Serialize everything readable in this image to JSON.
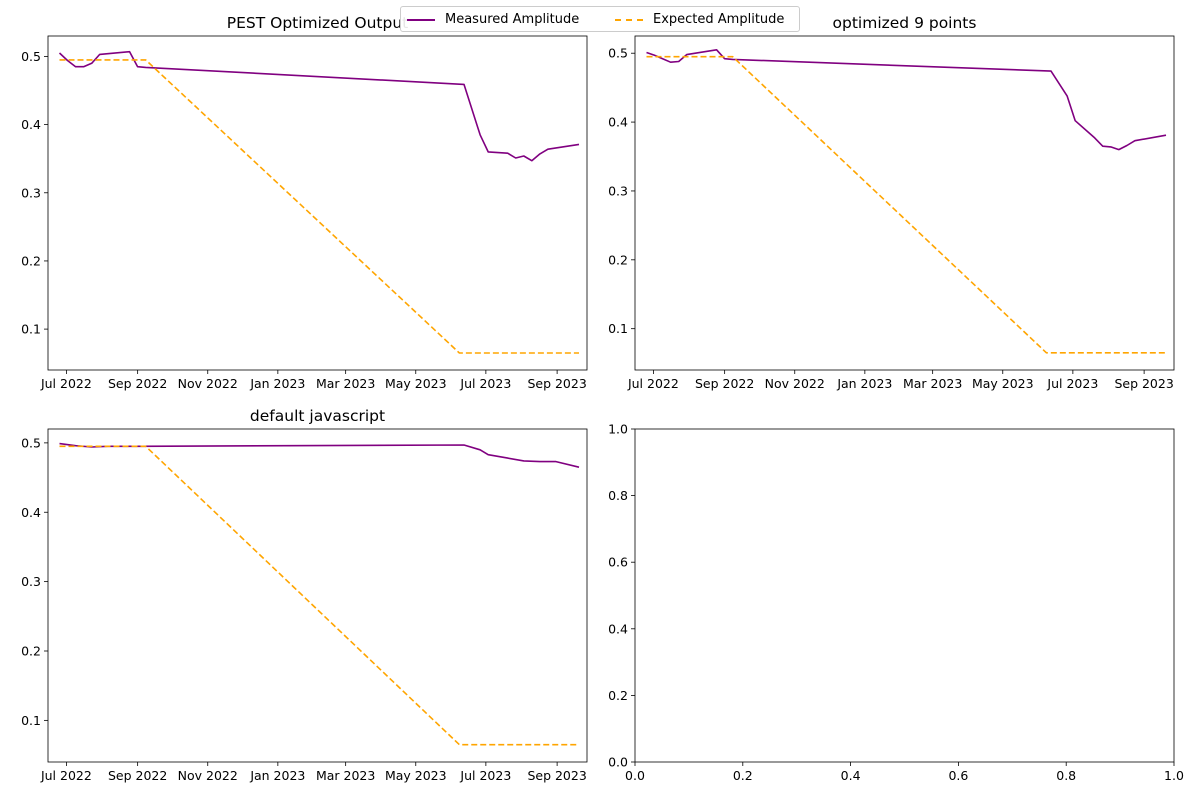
{
  "legend": {
    "placement": "top-center",
    "items": [
      {
        "label": "Measured Amplitude",
        "color": "#800080",
        "style": "solid"
      },
      {
        "label": "Expected Amplitude",
        "color": "#FFA500",
        "style": "dashed"
      }
    ]
  },
  "chart_data": [
    {
      "type": "line",
      "title": "PEST Optimized Output",
      "xlabel": "",
      "ylabel": "",
      "x_type": "date",
      "xlim": [
        "2022-06-15",
        "2023-09-27"
      ],
      "ylim": [
        0.04,
        0.53
      ],
      "xticks": [
        "Jul 2022",
        "Sep 2022",
        "Nov 2022",
        "Jan 2023",
        "Mar 2023",
        "May 2023",
        "Jul 2023",
        "Sep 2023"
      ],
      "yticks": [
        "0.1",
        "0.2",
        "0.3",
        "0.4",
        "0.5"
      ],
      "grid": false,
      "series": [
        {
          "name": "Measured Amplitude",
          "color": "#800080",
          "style": "solid",
          "x": [
            "2022-06-25",
            "2022-07-02",
            "2022-07-09",
            "2022-07-16",
            "2022-07-23",
            "2022-07-30",
            "2022-08-25",
            "2022-09-01",
            "2022-09-08",
            "2023-06-12",
            "2023-06-26",
            "2023-07-03",
            "2023-07-20",
            "2023-07-27",
            "2023-08-03",
            "2023-08-10",
            "2023-08-17",
            "2023-08-24",
            "2023-09-20"
          ],
          "y": [
            0.505,
            0.494,
            0.485,
            0.485,
            0.49,
            0.503,
            0.507,
            0.485,
            0.484,
            0.459,
            0.385,
            0.36,
            0.358,
            0.351,
            0.354,
            0.347,
            0.357,
            0.364,
            0.371
          ]
        },
        {
          "name": "Expected Amplitude",
          "color": "#FFA500",
          "style": "dashed",
          "x": [
            "2022-06-25",
            "2022-09-08",
            "2023-06-08",
            "2023-09-20"
          ],
          "y": [
            0.495,
            0.495,
            0.065,
            0.065
          ]
        }
      ]
    },
    {
      "type": "line",
      "title": "optimized 9 points",
      "xlabel": "",
      "ylabel": "",
      "x_type": "date",
      "xlim": [
        "2022-06-15",
        "2023-09-27"
      ],
      "ylim": [
        0.04,
        0.525
      ],
      "xticks": [
        "Jul 2022",
        "Sep 2022",
        "Nov 2022",
        "Jan 2023",
        "Mar 2023",
        "May 2023",
        "Jul 2023",
        "Sep 2023"
      ],
      "yticks": [
        "0.1",
        "0.2",
        "0.3",
        "0.4",
        "0.5"
      ],
      "grid": false,
      "series": [
        {
          "name": "Measured Amplitude",
          "color": "#800080",
          "style": "solid",
          "x": [
            "2022-06-25",
            "2022-07-02",
            "2022-07-09",
            "2022-07-16",
            "2022-07-23",
            "2022-07-30",
            "2022-08-25",
            "2022-09-01",
            "2022-09-08",
            "2023-06-12",
            "2023-06-26",
            "2023-07-03",
            "2023-07-20",
            "2023-07-27",
            "2023-08-03",
            "2023-08-10",
            "2023-08-17",
            "2023-08-24",
            "2023-09-20"
          ],
          "y": [
            0.501,
            0.497,
            0.492,
            0.487,
            0.488,
            0.498,
            0.505,
            0.492,
            0.491,
            0.474,
            0.438,
            0.402,
            0.377,
            0.365,
            0.364,
            0.36,
            0.366,
            0.373,
            0.381
          ]
        },
        {
          "name": "Expected Amplitude",
          "color": "#FFA500",
          "style": "dashed",
          "x": [
            "2022-06-25",
            "2022-09-08",
            "2023-06-08",
            "2023-09-20"
          ],
          "y": [
            0.495,
            0.495,
            0.065,
            0.065
          ]
        }
      ]
    },
    {
      "type": "line",
      "title": "default javascript",
      "xlabel": "",
      "ylabel": "",
      "x_type": "date",
      "xlim": [
        "2022-06-15",
        "2023-09-27"
      ],
      "ylim": [
        0.04,
        0.52
      ],
      "xticks": [
        "Jul 2022",
        "Sep 2022",
        "Nov 2022",
        "Jan 2023",
        "Mar 2023",
        "May 2023",
        "Jul 2023",
        "Sep 2023"
      ],
      "yticks": [
        "0.1",
        "0.2",
        "0.3",
        "0.4",
        "0.5"
      ],
      "grid": false,
      "series": [
        {
          "name": "Measured Amplitude",
          "color": "#800080",
          "style": "solid",
          "x": [
            "2022-06-25",
            "2022-07-09",
            "2022-07-23",
            "2022-08-06",
            "2022-08-20",
            "2022-09-03",
            "2023-06-12",
            "2023-06-26",
            "2023-07-03",
            "2023-07-20",
            "2023-08-03",
            "2023-08-17",
            "2023-08-31",
            "2023-09-20"
          ],
          "y": [
            0.499,
            0.496,
            0.494,
            0.495,
            0.495,
            0.495,
            0.497,
            0.49,
            0.483,
            0.478,
            0.474,
            0.473,
            0.473,
            0.465
          ]
        },
        {
          "name": "Expected Amplitude",
          "color": "#FFA500",
          "style": "dashed",
          "x": [
            "2022-06-25",
            "2022-09-08",
            "2023-06-08",
            "2023-09-20"
          ],
          "y": [
            0.495,
            0.495,
            0.065,
            0.065
          ]
        }
      ]
    },
    {
      "type": "line",
      "title": "",
      "xlabel": "",
      "ylabel": "",
      "x_type": "number",
      "xlim": [
        0,
        1
      ],
      "ylim": [
        0,
        1
      ],
      "xticks": [
        "0.0",
        "0.2",
        "0.4",
        "0.6",
        "0.8",
        "1.0"
      ],
      "yticks": [
        "0.0",
        "0.2",
        "0.4",
        "0.6",
        "0.8",
        "1.0"
      ],
      "grid": false,
      "series": []
    }
  ]
}
